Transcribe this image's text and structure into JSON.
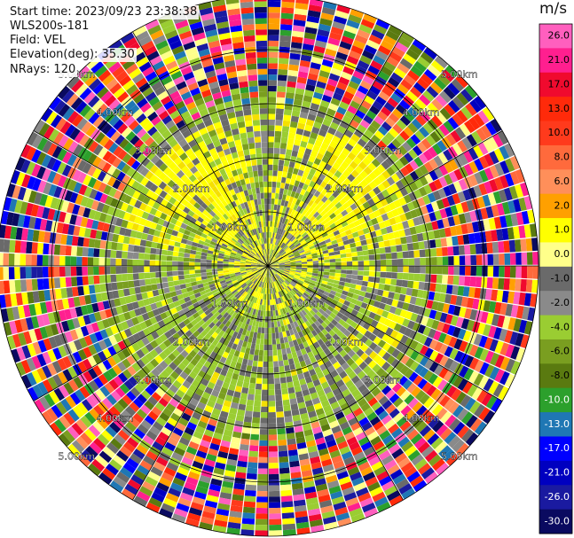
{
  "header": {
    "start_time": "Start time: 2023/09/23 23:38:38",
    "instrument": "WLS200s-181",
    "field": "Field: VEL",
    "elevation": "Elevation(deg): 35.30",
    "nrays": "NRays: 120"
  },
  "chart_data": {
    "type": "heatmap",
    "projection": "polar-ppi",
    "field": "VEL",
    "units": "m/s",
    "n_rays": 120,
    "range_rings_km": [
      1,
      2,
      3,
      4,
      5
    ],
    "range_ring_labels": [
      "1.00km",
      "2.00km",
      "3.00km",
      "4.00km",
      "5.00km"
    ],
    "spokes_deg": [
      0,
      30,
      60,
      90,
      120,
      150,
      180,
      210,
      240,
      270,
      300,
      330
    ],
    "colorbar": {
      "title": "m/s",
      "tick_labels": [
        "26.0",
        "21.0",
        "17.0",
        "13.0",
        "10.0",
        "8.0",
        "6.0",
        "2.0",
        "1.0",
        "0.0",
        "-1.0",
        "-2.0",
        "-4.0",
        "-6.0",
        "-8.0",
        "-10.0",
        "-13.0",
        "-17.0",
        "-21.0",
        "-26.0",
        "-30.0"
      ],
      "colors": [
        "#ff5fbe",
        "#ff1f8f",
        "#f00a2e",
        "#ff2a0a",
        "#ff3a1c",
        "#ff6a3c",
        "#ff8f5a",
        "#ffa000",
        "#ffff00",
        "#ffff8a",
        "#6a6a6a",
        "#8a8a8a",
        "#9acd32",
        "#7a9e20",
        "#5a7a10",
        "#2ca02c",
        "#1f77b4",
        "#0000ff",
        "#0000c0",
        "#1a1aa0",
        "#0a0a60"
      ]
    },
    "summary": {
      "inner_zone_km": [
        0,
        3.0
      ],
      "inner_description": "Near-zero radial velocities: grey (0 to -1) and green (-1 to -4) dominate, with yellow (1 to 2 m/s) lobes to the north-west and north-east and a small yellow patch to the south-east.",
      "outer_zone_km": [
        3.0,
        5.0
      ],
      "outer_description": "Noisy aliased returns covering the full colour range."
    }
  }
}
